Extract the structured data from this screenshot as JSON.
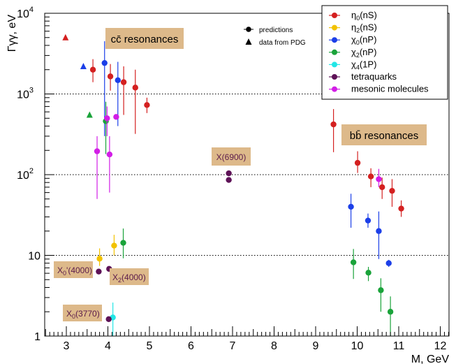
{
  "chart_data": {
    "type": "scatter",
    "xlabel": "M, GeV",
    "ylabel": "Γγγ, eV",
    "xlim": [
      2.5,
      12.3
    ],
    "ylim": [
      1,
      10000
    ],
    "y_scale": "log",
    "x_ticks": [
      3,
      4,
      5,
      6,
      7,
      8,
      9,
      10,
      11,
      12
    ],
    "y_ticks": [
      {
        "value": 1,
        "label": "1"
      },
      {
        "value": 10,
        "label": "10"
      },
      {
        "value": 100,
        "label": "10",
        "exp": "2"
      },
      {
        "value": 1000,
        "label": "10",
        "exp": "3"
      },
      {
        "value": 10000,
        "label": "10",
        "exp": "4"
      }
    ],
    "gridlines_y": [
      10,
      100,
      1000
    ],
    "legend": {
      "placement": "top-right",
      "entries": [
        {
          "label": "η0(nS)",
          "main": "η",
          "sub": "0",
          "suffix": "(nS)",
          "color": "#d42020"
        },
        {
          "label": "η2(nS)",
          "main": "η",
          "sub": "2",
          "suffix": "(nS)",
          "color": "#f2c200"
        },
        {
          "label": "χ0(nP)",
          "main": "χ",
          "sub": "0",
          "suffix": "(nP)",
          "color": "#1c3fe8"
        },
        {
          "label": "χ2(nP)",
          "main": "χ",
          "sub": "2",
          "suffix": "(nP)",
          "color": "#1aa33a"
        },
        {
          "label": "χ4(1P)",
          "main": "χ",
          "sub": "4",
          "suffix": "(1P)",
          "color": "#22e6e6"
        },
        {
          "label": "tetraquarks",
          "main": "tetraquarks",
          "sub": "",
          "suffix": "",
          "color": "#5e1257"
        },
        {
          "label": "mesonic molecules",
          "main": "mesonic molecules",
          "sub": "",
          "suffix": "",
          "color": "#d21ee6"
        }
      ]
    },
    "symbol_legend": [
      {
        "label": "predictions",
        "marker": "circle"
      },
      {
        "label": "data from PDG",
        "marker": "triangle"
      }
    ],
    "text_boxes": [
      {
        "text": "cc̄ resonances",
        "at": [
          5.0,
          5000
        ]
      },
      {
        "text": "bb̄ resonances",
        "at": [
          10.5,
          250
        ]
      }
    ],
    "annotations": [
      {
        "main": "X",
        "sub": "0",
        "suffix": "'(4000)",
        "boxed": true
      },
      {
        "main": "X",
        "sub": "2",
        "suffix": "(4000)",
        "boxed": true
      },
      {
        "main": "X",
        "sub": "0",
        "suffix": "(3770)",
        "boxed": true
      },
      {
        "main": "X(6900)",
        "sub": "",
        "suffix": "",
        "boxed": true
      }
    ],
    "series": [
      {
        "name": "η0(nS)",
        "color": "#d42020",
        "points": [
          {
            "x": 3.64,
            "y": 2000,
            "lo": 1400,
            "hi": 2700
          },
          {
            "x": 4.06,
            "y": 1650,
            "lo": 1100,
            "hi": 2350
          },
          {
            "x": 4.38,
            "y": 1400,
            "lo": 550,
            "hi": 2200
          },
          {
            "x": 4.66,
            "y": 1200,
            "lo": 320,
            "hi": 2000
          },
          {
            "x": 4.94,
            "y": 730,
            "lo": 580,
            "hi": 900
          },
          {
            "x": 9.43,
            "y": 420,
            "lo": 190,
            "hi": 650
          },
          {
            "x": 10.01,
            "y": 140,
            "lo": 105,
            "hi": 195
          },
          {
            "x": 10.33,
            "y": 95,
            "lo": 70,
            "hi": 120
          },
          {
            "x": 10.6,
            "y": 70,
            "lo": 50,
            "hi": 92
          },
          {
            "x": 10.84,
            "y": 63,
            "lo": 40,
            "hi": 88
          },
          {
            "x": 11.06,
            "y": 38,
            "lo": 30,
            "hi": 48
          }
        ]
      },
      {
        "name": "η2(nS)",
        "color": "#f2c200",
        "points": [
          {
            "x": 3.8,
            "y": 9.1,
            "lo": 7.4,
            "hi": 12.2
          },
          {
            "x": 4.15,
            "y": 13.2,
            "lo": 10.0,
            "hi": 18.0
          }
        ]
      },
      {
        "name": "χ0(nP)",
        "color": "#1c3fe8",
        "points": [
          {
            "x": 3.92,
            "y": 2420,
            "lo": 300,
            "hi": 4500
          },
          {
            "x": 4.24,
            "y": 1480,
            "lo": 400,
            "hi": 2500
          },
          {
            "x": 9.85,
            "y": 40,
            "lo": 22,
            "hi": 58
          },
          {
            "x": 10.26,
            "y": 27,
            "lo": 22,
            "hi": 33
          },
          {
            "x": 10.52,
            "y": 20,
            "lo": 9,
            "hi": 35
          },
          {
            "x": 10.76,
            "y": 8,
            "lo": 7.2,
            "hi": 8.8
          }
        ]
      },
      {
        "name": "χ2(nP)",
        "color": "#1aa33a",
        "points": [
          {
            "x": 3.95,
            "y": 460,
            "lo": 180,
            "hi": 800
          },
          {
            "x": 4.37,
            "y": 14.3,
            "lo": 9.2,
            "hi": 21.5
          },
          {
            "x": 9.91,
            "y": 8.2,
            "lo": 5.1,
            "hi": 12.0
          },
          {
            "x": 10.27,
            "y": 6.1,
            "lo": 4.8,
            "hi": 7.2
          },
          {
            "x": 10.57,
            "y": 3.7,
            "lo": 2.0,
            "hi": 5.2
          },
          {
            "x": 10.8,
            "y": 2.0,
            "lo": 1.0,
            "hi": 3.1
          }
        ]
      },
      {
        "name": "χ4(1P)",
        "color": "#22e6e6",
        "points": [
          {
            "x": 4.12,
            "y": 1.7,
            "lo": 0.8,
            "hi": 2.6
          }
        ]
      },
      {
        "name": "tetraquarks",
        "color": "#5e1257",
        "points": [
          {
            "x": 3.78,
            "y": 6.3,
            "lo": 6.3,
            "hi": 6.3
          },
          {
            "x": 4.03,
            "y": 6.8,
            "lo": 6.8,
            "hi": 6.8
          },
          {
            "x": 4.02,
            "y": 1.62,
            "lo": 1.62,
            "hi": 1.62
          },
          {
            "x": 6.91,
            "y": 104,
            "lo": 104,
            "hi": 104
          },
          {
            "x": 6.91,
            "y": 86,
            "lo": 86,
            "hi": 86
          }
        ]
      },
      {
        "name": "mesonic molecules",
        "color": "#d21ee6",
        "points": [
          {
            "x": 3.74,
            "y": 195,
            "lo": 50,
            "hi": 300
          },
          {
            "x": 3.98,
            "y": 500,
            "lo": 300,
            "hi": 700
          },
          {
            "x": 4.04,
            "y": 178,
            "lo": 60,
            "hi": 300
          },
          {
            "x": 4.2,
            "y": 520,
            "lo": 520,
            "hi": 520
          },
          {
            "x": 10.52,
            "y": 88,
            "lo": 70,
            "hi": 118
          }
        ]
      }
    ],
    "pdg_data": [
      {
        "x": 2.98,
        "y": 5000,
        "color": "#d42020"
      },
      {
        "x": 3.41,
        "y": 2200,
        "color": "#1c3fe8"
      },
      {
        "x": 3.56,
        "y": 550,
        "color": "#1aa33a"
      }
    ]
  }
}
